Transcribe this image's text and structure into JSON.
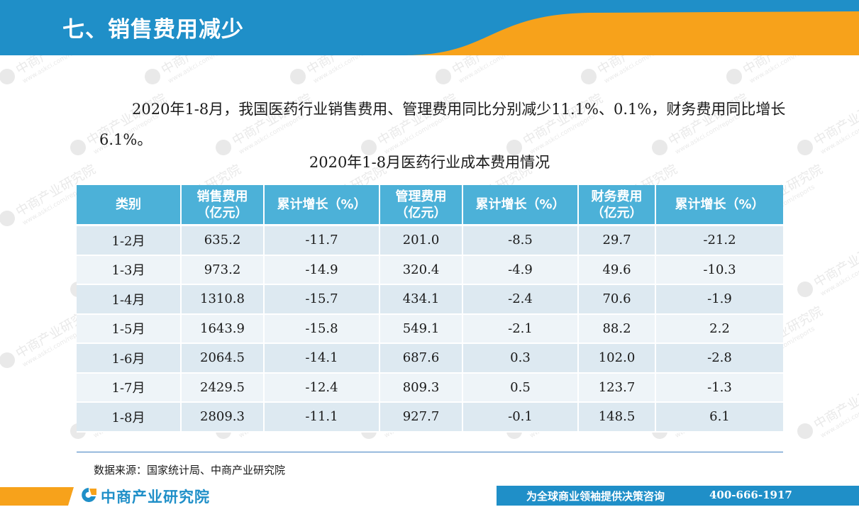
{
  "header": {
    "title": "七、销售费用减少"
  },
  "intro_text": "2020年1-8月，我国医药行业销售费用、管理费用同比分别减少11.1%、0.1%，财务费用同比增长6.1%。",
  "table": {
    "title": "2020年1-8月医药行业成本费用情况",
    "columns": {
      "category": "类别",
      "sales_expense": "销售费用",
      "unit": "（亿元）",
      "cumulative_growth": "累计增长（%）",
      "admin_expense": "管理费用",
      "financial_expense": "财务费用"
    },
    "rows": [
      [
        "1-2月",
        "635.2",
        "-11.7",
        "201.0",
        "-8.5",
        "29.7",
        "-21.2"
      ],
      [
        "1-3月",
        "973.2",
        "-14.9",
        "320.4",
        "-4.9",
        "49.6",
        "-10.3"
      ],
      [
        "1-4月",
        "1310.8",
        "-15.7",
        "434.1",
        "-2.4",
        "70.6",
        "-1.9"
      ],
      [
        "1-5月",
        "1643.9",
        "-15.8",
        "549.1",
        "-2.1",
        "88.2",
        "2.2"
      ],
      [
        "1-6月",
        "2064.5",
        "-14.1",
        "687.6",
        "0.3",
        "102.0",
        "-2.8"
      ],
      [
        "1-7月",
        "2429.5",
        "-12.4",
        "809.3",
        "0.5",
        "123.7",
        "-1.3"
      ],
      [
        "1-8月",
        "2809.3",
        "-11.1",
        "927.7",
        "-0.1",
        "148.5",
        "6.1"
      ]
    ]
  },
  "source": "数据来源：国家统计局、中商产业研究院",
  "footer": {
    "logo_text": "中商产业研究院",
    "slogan": "为全球商业领袖提供决策咨询",
    "phone": "400-666-1917"
  },
  "colors": {
    "brand_blue": "#1f8fc8",
    "accent_orange": "#f7a21b",
    "table_header": "#4cb1d8"
  },
  "watermark": {
    "text": "中商产业研究院",
    "url": "www.askci.com/reports"
  }
}
